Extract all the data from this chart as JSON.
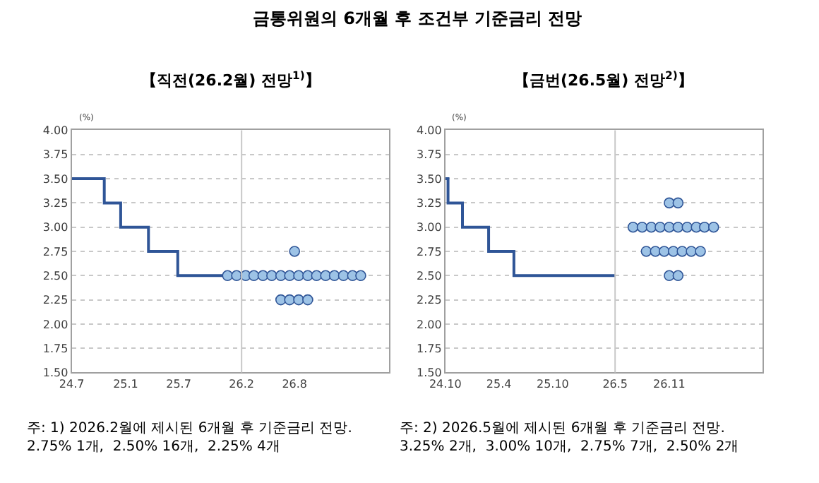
{
  "chart_data": [
    {
      "type": "step",
      "title": "금통위원의 6개월 후 조건부 기준금리 전망",
      "subtitle": "【직전(26.2월) 전망$^{1)}$】",
      "ylabel": "(%)",
      "xlim": [
        "2024-07",
        "2027-06-20"
      ],
      "xticks": [
        {
          "value": "2024-07",
          "label": "24.7"
        },
        {
          "value": "2025-01",
          "label": "25.1"
        },
        {
          "value": "2025-07",
          "label": "25.7"
        },
        {
          "value": "2026-02",
          "label": "26.2"
        },
        {
          "value": "2026-08",
          "label": "26.8"
        }
      ],
      "ylim": [
        1.5,
        4.0
      ],
      "yticks": [
        {
          "value": 1.5,
          "label": "1.50"
        },
        {
          "value": 1.75,
          "label": "1.75"
        },
        {
          "value": 2.0,
          "label": "2.00"
        },
        {
          "value": 2.25,
          "label": "2.25"
        },
        {
          "value": 2.5,
          "label": "2.50"
        },
        {
          "value": 2.75,
          "label": "2.75"
        },
        {
          "value": 3.0,
          "label": "3.00"
        },
        {
          "value": 3.25,
          "label": "3.25"
        },
        {
          "value": 3.5,
          "label": "3.50"
        },
        {
          "value": 3.75,
          "label": "3.75"
        },
        {
          "value": 4.0,
          "label": "4.00"
        }
      ],
      "grid": "y",
      "ref_lines": [
        {
          "axis": "x",
          "value": "2026-02",
          "color": "#c8c8c8"
        }
      ],
      "series": [
        {
          "color": "#2f5597",
          "marker": "none",
          "x": [
            "2024-07",
            "2024-10-20",
            "2024-12-15",
            "2025-03-20",
            "2025-06-28",
            "2026-02"
          ],
          "values": [
            3.5,
            3.25,
            3.0,
            2.75,
            2.5,
            2.5
          ]
        },
        {
          "type": "scatter",
          "color": "#9dc3e6",
          "marker": "circle",
          "x": [
            "2026-08",
            "2025-12-15",
            "2026-01-15",
            "2026-02-15",
            "2026-03-15",
            "2026-04-15",
            "2026-05-15",
            "2026-06-15",
            "2026-07-15",
            "2026-08-15",
            "2026-09-15",
            "2026-10-15",
            "2026-11-15",
            "2026-12-15",
            "2027-01-15",
            "2027-02-15",
            "2027-03-15",
            "2026-06-15",
            "2026-07-15",
            "2026-08-15",
            "2026-09-15"
          ],
          "values": [
            2.75,
            2.5,
            2.5,
            2.5,
            2.5,
            2.5,
            2.5,
            2.5,
            2.5,
            2.5,
            2.5,
            2.5,
            2.5,
            2.5,
            2.5,
            2.5,
            2.5,
            2.25,
            2.25,
            2.25,
            2.25
          ]
        }
      ],
      "annotations": [
        "주: 1) 2026.2월에 제시된 6개월 후 기준금리 전망.\n2.75% 1개,  2.50% 16개,  2.25% 4개"
      ]
    },
    {
      "type": "step",
      "subtitle": "【금번(26.5월) 전망$^{2)}$】",
      "ylabel": "(%)",
      "xlim": [
        "2024-10",
        "2027-09-15"
      ],
      "xticks": [
        {
          "value": "2024-10",
          "label": "24.10"
        },
        {
          "value": "2025-04",
          "label": "25.4"
        },
        {
          "value": "2025-10",
          "label": "25.10"
        },
        {
          "value": "2026-05",
          "label": "26.5"
        },
        {
          "value": "2026-11",
          "label": "26.11"
        }
      ],
      "ylim": [
        1.5,
        4.0
      ],
      "yticks": [
        {
          "value": 1.5,
          "label": "1.50"
        },
        {
          "value": 1.75,
          "label": "1.75"
        },
        {
          "value": 2.0,
          "label": "2.00"
        },
        {
          "value": 2.25,
          "label": "2.25"
        },
        {
          "value": 2.5,
          "label": "2.50"
        },
        {
          "value": 2.75,
          "label": "2.75"
        },
        {
          "value": 3.0,
          "label": "3.00"
        },
        {
          "value": 3.25,
          "label": "3.25"
        },
        {
          "value": 3.5,
          "label": "3.50"
        },
        {
          "value": 3.75,
          "label": "3.75"
        },
        {
          "value": 4.0,
          "label": "4.00"
        }
      ],
      "grid": "y",
      "ref_lines": [
        {
          "axis": "x",
          "value": "2026-05",
          "color": "#c8c8c8"
        }
      ],
      "series": [
        {
          "color": "#2f5597",
          "marker": "none",
          "x": [
            "2024-10",
            "2024-10-10",
            "2024-11-28",
            "2025-02-25",
            "2025-05-22",
            "2026-05"
          ],
          "values": [
            3.5,
            3.25,
            3.0,
            2.75,
            2.5,
            2.5
          ]
        },
        {
          "type": "scatter",
          "color": "#9dc3e6",
          "marker": "circle",
          "x": [
            "2026-11-01",
            "2026-12-01",
            "2026-07-01",
            "2026-08-01",
            "2026-09-01",
            "2026-10-01",
            "2026-11-01",
            "2026-12-01",
            "2027-01-01",
            "2027-02-01",
            "2027-03-01",
            "2027-04-01",
            "2026-08-15",
            "2026-09-15",
            "2026-10-15",
            "2026-11-15",
            "2026-12-15",
            "2027-01-15",
            "2027-02-15",
            "2026-11-01",
            "2026-12-01"
          ],
          "values": [
            3.25,
            3.25,
            3.0,
            3.0,
            3.0,
            3.0,
            3.0,
            3.0,
            3.0,
            3.0,
            3.0,
            3.0,
            2.75,
            2.75,
            2.75,
            2.75,
            2.75,
            2.75,
            2.75,
            2.5,
            2.5
          ]
        }
      ],
      "annotations": [
        "주: 2) 2026.5월에 제시된 6개월 후 기준금리 전망.\n3.25% 2개,  3.00% 10개,  2.75% 7개,  2.50% 2개"
      ]
    }
  ]
}
